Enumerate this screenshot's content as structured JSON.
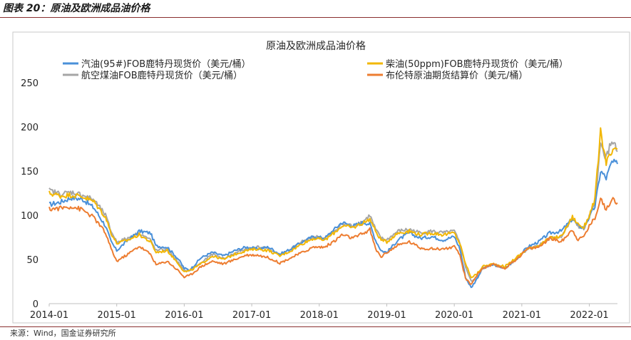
{
  "figure": {
    "label": "图表 20：原油及欧洲成品油价格",
    "source": "来源：Wind，国金证券研究所"
  },
  "chart_data": {
    "type": "line",
    "title": "原油及欧洲成品油价格",
    "xlabel": "",
    "ylabel": "",
    "ylim": [
      0,
      250
    ],
    "yticks": [
      0,
      50,
      100,
      150,
      200,
      250
    ],
    "xlim": [
      "2014-01",
      "2022-06"
    ],
    "xticks": [
      "2014-01",
      "2015-01",
      "2016-01",
      "2017-01",
      "2018-01",
      "2019-01",
      "2020-01",
      "2021-01",
      "2022-01"
    ],
    "grid": false,
    "legend_position": "top",
    "series": [
      {
        "name": "汽油(95#)FOB鹿特丹现货价（美元/桶）",
        "color": "#4a90d9",
        "points": [
          [
            "2014-01",
            112
          ],
          [
            "2014-03",
            115
          ],
          [
            "2014-05",
            120
          ],
          [
            "2014-07",
            118
          ],
          [
            "2014-09",
            108
          ],
          [
            "2014-11",
            88
          ],
          [
            "2014-12",
            70
          ],
          [
            "2015-01",
            60
          ],
          [
            "2015-03",
            72
          ],
          [
            "2015-05",
            82
          ],
          [
            "2015-07",
            80
          ],
          [
            "2015-08",
            65
          ],
          [
            "2015-10",
            64
          ],
          [
            "2015-12",
            50
          ],
          [
            "2016-01",
            40
          ],
          [
            "2016-02",
            38
          ],
          [
            "2016-04",
            52
          ],
          [
            "2016-06",
            58
          ],
          [
            "2016-08",
            54
          ],
          [
            "2016-10",
            60
          ],
          [
            "2016-12",
            64
          ],
          [
            "2017-02",
            62
          ],
          [
            "2017-04",
            64
          ],
          [
            "2017-06",
            56
          ],
          [
            "2017-08",
            62
          ],
          [
            "2017-10",
            70
          ],
          [
            "2017-12",
            76
          ],
          [
            "2018-02",
            74
          ],
          [
            "2018-04",
            86
          ],
          [
            "2018-05",
            92
          ],
          [
            "2018-07",
            88
          ],
          [
            "2018-09",
            92
          ],
          [
            "2018-10",
            90
          ],
          [
            "2018-11",
            72
          ],
          [
            "2018-12",
            60
          ],
          [
            "2019-01",
            58
          ],
          [
            "2019-03",
            72
          ],
          [
            "2019-05",
            80
          ],
          [
            "2019-07",
            74
          ],
          [
            "2019-09",
            76
          ],
          [
            "2019-11",
            72
          ],
          [
            "2020-01",
            76
          ],
          [
            "2020-02",
            62
          ],
          [
            "2020-03",
            30
          ],
          [
            "2020-04",
            18
          ],
          [
            "2020-05",
            28
          ],
          [
            "2020-06",
            40
          ],
          [
            "2020-08",
            44
          ],
          [
            "2020-10",
            40
          ],
          [
            "2020-12",
            50
          ],
          [
            "2021-02",
            64
          ],
          [
            "2021-04",
            70
          ],
          [
            "2021-06",
            80
          ],
          [
            "2021-08",
            82
          ],
          [
            "2021-10",
            96
          ],
          [
            "2021-11",
            88
          ],
          [
            "2021-12",
            86
          ],
          [
            "2022-01",
            98
          ],
          [
            "2022-02",
            110
          ],
          [
            "2022-03",
            150
          ],
          [
            "2022-04",
            142
          ],
          [
            "2022-05",
            160
          ],
          [
            "2022-06",
            158
          ]
        ]
      },
      {
        "name": "柴油(50ppm)FOB鹿特丹现货价（美元/桶）",
        "color": "#f2b705",
        "points": [
          [
            "2014-01",
            125
          ],
          [
            "2014-03",
            122
          ],
          [
            "2014-05",
            123
          ],
          [
            "2014-07",
            121
          ],
          [
            "2014-09",
            115
          ],
          [
            "2014-11",
            98
          ],
          [
            "2014-12",
            80
          ],
          [
            "2015-01",
            68
          ],
          [
            "2015-03",
            72
          ],
          [
            "2015-05",
            78
          ],
          [
            "2015-07",
            70
          ],
          [
            "2015-08",
            58
          ],
          [
            "2015-10",
            60
          ],
          [
            "2015-12",
            45
          ],
          [
            "2016-01",
            36
          ],
          [
            "2016-02",
            37
          ],
          [
            "2016-04",
            45
          ],
          [
            "2016-06",
            54
          ],
          [
            "2016-08",
            50
          ],
          [
            "2016-10",
            56
          ],
          [
            "2016-12",
            60
          ],
          [
            "2017-02",
            62
          ],
          [
            "2017-04",
            60
          ],
          [
            "2017-06",
            54
          ],
          [
            "2017-08",
            60
          ],
          [
            "2017-10",
            68
          ],
          [
            "2017-12",
            74
          ],
          [
            "2018-02",
            72
          ],
          [
            "2018-04",
            82
          ],
          [
            "2018-05",
            88
          ],
          [
            "2018-07",
            86
          ],
          [
            "2018-09",
            92
          ],
          [
            "2018-10",
            96
          ],
          [
            "2018-11",
            82
          ],
          [
            "2018-12",
            72
          ],
          [
            "2019-01",
            70
          ],
          [
            "2019-03",
            80
          ],
          [
            "2019-05",
            82
          ],
          [
            "2019-07",
            78
          ],
          [
            "2019-09",
            80
          ],
          [
            "2019-11",
            78
          ],
          [
            "2020-01",
            80
          ],
          [
            "2020-02",
            68
          ],
          [
            "2020-03",
            45
          ],
          [
            "2020-04",
            30
          ],
          [
            "2020-05",
            33
          ],
          [
            "2020-06",
            42
          ],
          [
            "2020-08",
            45
          ],
          [
            "2020-10",
            42
          ],
          [
            "2020-12",
            52
          ],
          [
            "2021-02",
            62
          ],
          [
            "2021-04",
            66
          ],
          [
            "2021-06",
            74
          ],
          [
            "2021-08",
            76
          ],
          [
            "2021-10",
            98
          ],
          [
            "2021-11",
            90
          ],
          [
            "2021-12",
            86
          ],
          [
            "2022-01",
            100
          ],
          [
            "2022-02",
            118
          ],
          [
            "2022-03",
            194
          ],
          [
            "2022-04",
            160
          ],
          [
            "2022-05",
            170
          ],
          [
            "2022-06",
            175
          ]
        ]
      },
      {
        "name": "航空煤油FOB鹿特丹现货价（美元/桶）",
        "color": "#a6a6a6",
        "points": [
          [
            "2014-01",
            128
          ],
          [
            "2014-03",
            124
          ],
          [
            "2014-05",
            126
          ],
          [
            "2014-07",
            123
          ],
          [
            "2014-09",
            117
          ],
          [
            "2014-11",
            100
          ],
          [
            "2014-12",
            82
          ],
          [
            "2015-01",
            70
          ],
          [
            "2015-03",
            74
          ],
          [
            "2015-05",
            80
          ],
          [
            "2015-07",
            72
          ],
          [
            "2015-08",
            60
          ],
          [
            "2015-10",
            62
          ],
          [
            "2015-12",
            46
          ],
          [
            "2016-01",
            37
          ],
          [
            "2016-02",
            38
          ],
          [
            "2016-04",
            46
          ],
          [
            "2016-06",
            56
          ],
          [
            "2016-08",
            51
          ],
          [
            "2016-10",
            57
          ],
          [
            "2016-12",
            62
          ],
          [
            "2017-02",
            64
          ],
          [
            "2017-04",
            62
          ],
          [
            "2017-06",
            55
          ],
          [
            "2017-08",
            62
          ],
          [
            "2017-10",
            70
          ],
          [
            "2017-12",
            76
          ],
          [
            "2018-02",
            74
          ],
          [
            "2018-04",
            84
          ],
          [
            "2018-05",
            90
          ],
          [
            "2018-07",
            88
          ],
          [
            "2018-09",
            94
          ],
          [
            "2018-10",
            100
          ],
          [
            "2018-11",
            84
          ],
          [
            "2018-12",
            74
          ],
          [
            "2019-01",
            72
          ],
          [
            "2019-03",
            82
          ],
          [
            "2019-05",
            84
          ],
          [
            "2019-07",
            80
          ],
          [
            "2019-09",
            82
          ],
          [
            "2019-11",
            80
          ],
          [
            "2020-01",
            82
          ],
          [
            "2020-02",
            68
          ],
          [
            "2020-03",
            42
          ],
          [
            "2020-04",
            25
          ],
          [
            "2020-05",
            28
          ],
          [
            "2020-06",
            40
          ],
          [
            "2020-08",
            44
          ],
          [
            "2020-10",
            40
          ],
          [
            "2020-12",
            50
          ],
          [
            "2021-02",
            62
          ],
          [
            "2021-04",
            66
          ],
          [
            "2021-06",
            74
          ],
          [
            "2021-08",
            76
          ],
          [
            "2021-10",
            96
          ],
          [
            "2021-11",
            88
          ],
          [
            "2021-12",
            84
          ],
          [
            "2022-01",
            98
          ],
          [
            "2022-02",
            112
          ],
          [
            "2022-03",
            180
          ],
          [
            "2022-04",
            165
          ],
          [
            "2022-05",
            185
          ],
          [
            "2022-06",
            172
          ]
        ]
      },
      {
        "name": "布伦特原油期货结算价（美元/桶）",
        "color": "#ed7d31",
        "points": [
          [
            "2014-01",
            107
          ],
          [
            "2014-03",
            108
          ],
          [
            "2014-05",
            110
          ],
          [
            "2014-07",
            106
          ],
          [
            "2014-09",
            97
          ],
          [
            "2014-11",
            80
          ],
          [
            "2014-12",
            62
          ],
          [
            "2015-01",
            48
          ],
          [
            "2015-03",
            56
          ],
          [
            "2015-05",
            65
          ],
          [
            "2015-07",
            56
          ],
          [
            "2015-08",
            44
          ],
          [
            "2015-10",
            48
          ],
          [
            "2015-12",
            37
          ],
          [
            "2016-01",
            30
          ],
          [
            "2016-02",
            32
          ],
          [
            "2016-04",
            42
          ],
          [
            "2016-06",
            48
          ],
          [
            "2016-08",
            45
          ],
          [
            "2016-10",
            50
          ],
          [
            "2016-12",
            55
          ],
          [
            "2017-02",
            55
          ],
          [
            "2017-04",
            52
          ],
          [
            "2017-06",
            46
          ],
          [
            "2017-08",
            52
          ],
          [
            "2017-10",
            58
          ],
          [
            "2017-12",
            64
          ],
          [
            "2018-02",
            64
          ],
          [
            "2018-04",
            72
          ],
          [
            "2018-05",
            78
          ],
          [
            "2018-07",
            74
          ],
          [
            "2018-09",
            80
          ],
          [
            "2018-10",
            84
          ],
          [
            "2018-11",
            62
          ],
          [
            "2018-12",
            53
          ],
          [
            "2019-01",
            58
          ],
          [
            "2019-03",
            66
          ],
          [
            "2019-05",
            70
          ],
          [
            "2019-07",
            63
          ],
          [
            "2019-09",
            62
          ],
          [
            "2019-11",
            62
          ],
          [
            "2020-01",
            64
          ],
          [
            "2020-02",
            55
          ],
          [
            "2020-03",
            28
          ],
          [
            "2020-04",
            22
          ],
          [
            "2020-05",
            32
          ],
          [
            "2020-06",
            40
          ],
          [
            "2020-08",
            44
          ],
          [
            "2020-10",
            40
          ],
          [
            "2020-12",
            50
          ],
          [
            "2021-02",
            62
          ],
          [
            "2021-04",
            64
          ],
          [
            "2021-06",
            74
          ],
          [
            "2021-08",
            70
          ],
          [
            "2021-10",
            84
          ],
          [
            "2021-11",
            72
          ],
          [
            "2021-12",
            76
          ],
          [
            "2022-01",
            88
          ],
          [
            "2022-02",
            97
          ],
          [
            "2022-03",
            120
          ],
          [
            "2022-04",
            105
          ],
          [
            "2022-05",
            120
          ],
          [
            "2022-06",
            114
          ]
        ]
      }
    ]
  }
}
